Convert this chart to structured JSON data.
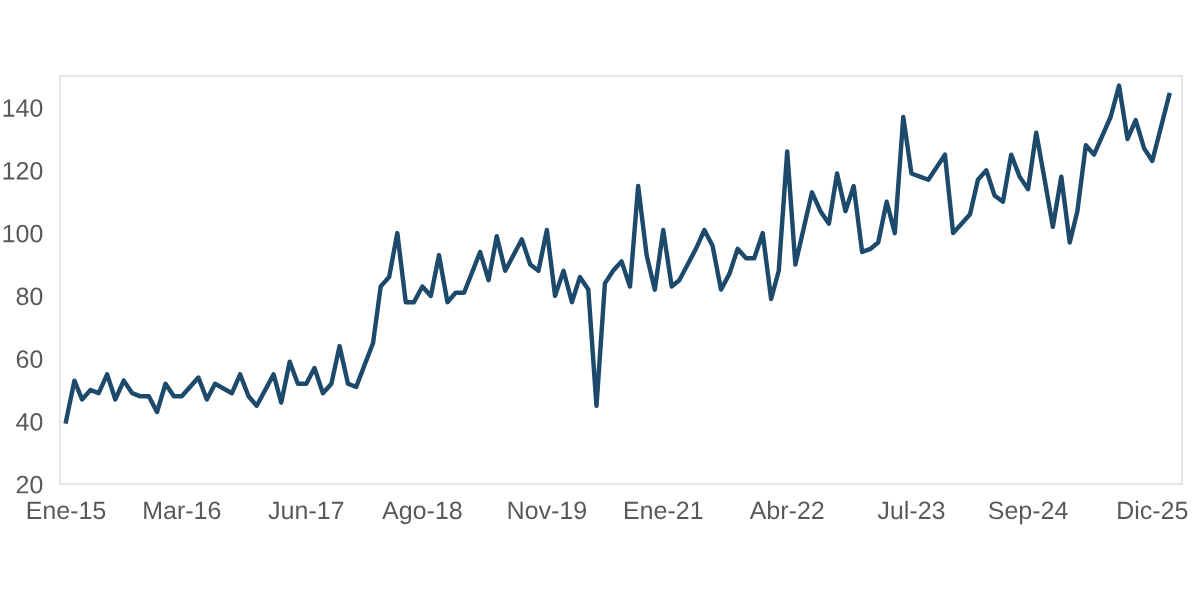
{
  "chart_data": {
    "type": "line",
    "grid": false,
    "legend": false,
    "marker": "none",
    "line_style": "solid",
    "x": [
      "2015-01",
      "2015-02",
      "2015-03",
      "2015-04",
      "2015-05",
      "2015-06",
      "2015-07",
      "2015-08",
      "2015-09",
      "2015-10",
      "2015-11",
      "2015-12",
      "2016-01",
      "2016-02",
      "2016-03",
      "2016-05",
      "2016-06",
      "2016-07",
      "2016-09",
      "2016-10",
      "2016-11",
      "2016-12",
      "2017-02",
      "2017-03",
      "2017-04",
      "2017-05",
      "2017-06",
      "2017-07",
      "2017-08",
      "2017-09",
      "2017-10",
      "2017-11",
      "2017-12",
      "2018-02",
      "2018-03",
      "2018-04",
      "2018-05",
      "2018-06",
      "2018-07",
      "2018-08",
      "2018-09",
      "2018-10",
      "2018-11",
      "2018-12",
      "2019-01",
      "2019-03",
      "2019-04",
      "2019-05",
      "2019-06",
      "2019-08",
      "2019-09",
      "2019-10",
      "2019-11",
      "2019-12",
      "2020-01",
      "2020-02",
      "2020-03",
      "2020-04",
      "2020-05",
      "2020-06",
      "2020-07",
      "2020-08",
      "2020-09",
      "2020-10",
      "2020-11",
      "2020-12",
      "2021-01",
      "2021-02",
      "2021-03",
      "2021-05",
      "2021-06",
      "2021-07",
      "2021-08",
      "2021-09",
      "2021-10",
      "2021-11",
      "2021-12",
      "2022-01",
      "2022-02",
      "2022-03",
      "2022-04",
      "2022-05",
      "2022-07",
      "2022-08",
      "2022-09",
      "2022-10",
      "2022-11",
      "2022-12",
      "2023-01",
      "2023-02",
      "2023-03",
      "2023-04",
      "2023-05",
      "2023-06",
      "2023-07",
      "2023-08",
      "2023-09",
      "2023-11",
      "2023-12",
      "2024-01",
      "2024-02",
      "2024-03",
      "2024-04",
      "2024-05",
      "2024-06",
      "2024-07",
      "2024-08",
      "2024-09",
      "2024-10",
      "2024-11",
      "2024-12",
      "2025-01",
      "2025-02",
      "2025-03",
      "2025-04",
      "2025-05",
      "2025-07",
      "2025-08",
      "2025-09",
      "2025-10",
      "2025-11",
      "2025-12",
      "2026-02"
    ],
    "series": [
      {
        "color": "#1d4a6b",
        "values": [
          40,
          53,
          47,
          50,
          49,
          55,
          47,
          53,
          49,
          48,
          48,
          43,
          52,
          48,
          48,
          54,
          47,
          52,
          49,
          55,
          48,
          45,
          55,
          46,
          59,
          52,
          52,
          57,
          49,
          52,
          64,
          52,
          51,
          65,
          83,
          86,
          100,
          78,
          78,
          83,
          80,
          93,
          78,
          81,
          81,
          94,
          85,
          99,
          88,
          98,
          90,
          88,
          101,
          80,
          88,
          78,
          86,
          82,
          45,
          84,
          88,
          91,
          83,
          115,
          93,
          82,
          101,
          83,
          85,
          95,
          101,
          96,
          82,
          87,
          95,
          92,
          92,
          100,
          79,
          88,
          126,
          90,
          113,
          107,
          103,
          119,
          107,
          115,
          94,
          95,
          97,
          110,
          100,
          137,
          119,
          118,
          117,
          125,
          100,
          103,
          106,
          117,
          120,
          112,
          110,
          125,
          118,
          114,
          132,
          117,
          102,
          118,
          97,
          107,
          128,
          125,
          137,
          147,
          130,
          136,
          127,
          123,
          144
        ]
      }
    ],
    "xticks": [
      {
        "value": "2015-01",
        "label": "Ene-15"
      },
      {
        "value": "2016-03",
        "label": "Mar-16"
      },
      {
        "value": "2017-06",
        "label": "Jun-17"
      },
      {
        "value": "2018-08",
        "label": "Ago-18"
      },
      {
        "value": "2019-11",
        "label": "Nov-19"
      },
      {
        "value": "2021-01",
        "label": "Ene-21"
      },
      {
        "value": "2022-04",
        "label": "Abr-22"
      },
      {
        "value": "2023-07",
        "label": "Jul-23"
      },
      {
        "value": "2024-09",
        "label": "Sep-24"
      },
      {
        "value": "2025-12",
        "label": "Dic-25"
      }
    ],
    "xlim": [
      "2014-12-10",
      "2026-03-20"
    ],
    "ylim": [
      20,
      150
    ],
    "yticks": [
      20,
      40,
      60,
      80,
      100,
      120,
      140
    ]
  }
}
